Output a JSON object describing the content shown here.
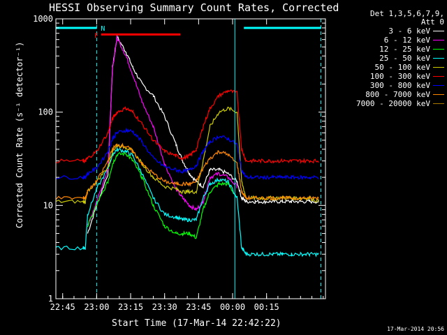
{
  "title": "HESSI Observing Summary Count Rates, Corrected",
  "xlabel": "Start Time (17-Mar-14 22:42:22)",
  "ylabel": "Corrected Count Rate (s⁻¹ detector⁻¹)",
  "timestamp": "17-Mar-2014 20:56",
  "legend_header": [
    "Det 1,3,5,6,7,9,",
    "Att 0"
  ],
  "colors": {
    "background": "#000000",
    "axes": "#ffffff",
    "night_bar": "#00ffff",
    "flare_bar": "#ff0000"
  },
  "annotations": {
    "night_marker": "N",
    "flare_marker": "F"
  },
  "chart_data": {
    "type": "line",
    "title": "HESSI Observing Summary Count Rates, Corrected",
    "xlabel": "Start Time (17-Mar-14 22:42:22)",
    "ylabel": "Corrected Count Rate (s⁻¹ detector⁻¹)",
    "x_unit": "minutes",
    "xlim": [
      -18,
      101
    ],
    "ylim": [
      1,
      1000
    ],
    "yscale": "log",
    "x_ticks": [
      {
        "value": -15,
        "label": "22:45"
      },
      {
        "value": 0,
        "label": "23:00"
      },
      {
        "value": 15,
        "label": "23:15"
      },
      {
        "value": 30,
        "label": "23:30"
      },
      {
        "value": 45,
        "label": "23:45"
      },
      {
        "value": 60,
        "label": "00:00"
      },
      {
        "value": 75,
        "label": "00:15"
      }
    ],
    "y_ticks": [
      {
        "value": 1,
        "label": "1"
      },
      {
        "value": 10,
        "label": "10"
      },
      {
        "value": 100,
        "label": "100"
      },
      {
        "value": 1000,
        "label": "1000"
      }
    ],
    "legend_position": "right",
    "x": [
      -18,
      -6,
      -5,
      -4,
      0,
      5,
      7,
      9,
      13,
      16,
      20,
      25,
      30,
      35,
      38,
      41,
      44,
      47,
      50,
      54,
      58,
      62,
      64,
      66,
      70,
      74,
      78,
      82,
      86,
      90,
      94,
      98,
      101
    ],
    "series": [
      {
        "name": "3 - 6 keV",
        "color": "#ffffff",
        "values": [
          null,
          null,
          null,
          5,
          10,
          22,
          300,
          640,
          440,
          300,
          200,
          150,
          90,
          45,
          30,
          22,
          18,
          16,
          24,
          24,
          22,
          18,
          12,
          11,
          11,
          11,
          11,
          11,
          11,
          11,
          11,
          11,
          null
        ]
      },
      {
        "name": "6 - 12 keV",
        "color": "#ff00ff",
        "values": [
          null,
          null,
          null,
          6,
          11,
          25,
          290,
          630,
          400,
          250,
          130,
          70,
          28,
          15,
          12,
          10,
          9,
          11,
          20,
          22,
          20,
          16,
          null,
          null,
          null,
          null,
          null,
          null,
          null,
          null,
          null,
          null,
          null
        ]
      },
      {
        "name": "12 - 25 keV",
        "color": "#00ff00",
        "values": [
          null,
          null,
          null,
          6,
          10,
          18,
          28,
          35,
          36,
          30,
          20,
          10,
          6,
          5,
          5,
          5,
          4.5,
          9,
          14,
          17,
          17,
          12,
          null,
          null,
          null,
          null,
          null,
          null,
          null,
          null,
          null,
          null,
          null
        ]
      },
      {
        "name": "25 - 50 keV",
        "color": "#00ffff",
        "values": [
          3.5,
          3.5,
          3.5,
          8,
          15,
          25,
          35,
          40,
          38,
          34,
          22,
          12,
          8,
          7.5,
          7,
          7,
          7,
          12,
          17,
          19,
          18,
          12,
          3.5,
          3,
          3,
          3,
          3,
          3,
          3,
          3,
          3,
          3,
          null
        ]
      },
      {
        "name": "50 - 100 keV",
        "color": "#cccc00",
        "values": [
          11,
          11,
          11,
          14,
          18,
          26,
          38,
          44,
          42,
          38,
          28,
          20,
          16,
          15,
          14,
          14,
          14,
          30,
          70,
          100,
          110,
          100,
          18,
          12,
          12,
          12,
          12,
          12,
          12,
          12,
          12,
          11,
          null
        ]
      },
      {
        "name": "100 - 300 keV",
        "color": "#ff0000",
        "values": [
          30,
          30,
          30,
          32,
          38,
          60,
          85,
          100,
          110,
          100,
          75,
          50,
          38,
          34,
          32,
          34,
          40,
          70,
          110,
          150,
          170,
          160,
          40,
          30,
          30,
          30,
          30,
          30,
          30,
          30,
          30,
          30,
          null
        ]
      },
      {
        "name": "300 - 800 keV",
        "color": "#0000ff",
        "values": [
          20,
          20,
          20,
          22,
          25,
          38,
          52,
          60,
          64,
          62,
          48,
          32,
          26,
          24,
          23,
          24,
          27,
          38,
          48,
          55,
          52,
          45,
          24,
          20,
          20,
          20,
          20,
          20,
          20,
          20,
          20,
          20,
          null
        ]
      },
      {
        "name": "800 - 7000 keV",
        "color": "#ff8800",
        "values": [
          12,
          12,
          12,
          14,
          18,
          30,
          40,
          45,
          43,
          38,
          28,
          22,
          18,
          17,
          17,
          17,
          18,
          25,
          32,
          38,
          35,
          28,
          14,
          12,
          12,
          12,
          12,
          12,
          12,
          12,
          12,
          12,
          null
        ]
      },
      {
        "name": "7000 - 20000 keV",
        "color": "#aa7700",
        "values": [
          null,
          null,
          null,
          null,
          null,
          null,
          null,
          null,
          null,
          null,
          null,
          null,
          null,
          null,
          null,
          null,
          null,
          null,
          null,
          null,
          null,
          null,
          null,
          null,
          null,
          null,
          null,
          null,
          null,
          null,
          null,
          null,
          null
        ]
      }
    ],
    "night_intervals": [
      [
        -18,
        0
      ],
      [
        65,
        99
      ]
    ],
    "flare_intervals": [
      [
        2,
        37
      ]
    ],
    "saa_markers": [
      0,
      61,
      99
    ]
  }
}
